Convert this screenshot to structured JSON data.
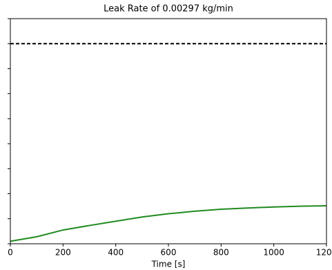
{
  "chart_data": {
    "type": "line",
    "title": "Leak Rate of 0.00297 kg/min",
    "xlabel": "Time [s]",
    "xlim": [
      0,
      1200
    ],
    "xticks": [
      0,
      200,
      400,
      600,
      800,
      1000,
      1200
    ],
    "ylim": [
      0,
      9
    ],
    "yticks": [
      0,
      1,
      2,
      3,
      4,
      5,
      6,
      7,
      8,
      9
    ],
    "series": [
      {
        "color": "#1f8a1f",
        "dashed": false,
        "x": [
          0,
          100,
          200,
          300,
          400,
          500,
          600,
          700,
          800,
          900,
          1000,
          1100,
          1200
        ],
        "values": [
          0.1,
          0.28,
          0.55,
          0.73,
          0.9,
          1.07,
          1.2,
          1.3,
          1.38,
          1.43,
          1.47,
          1.5,
          1.52
        ]
      },
      {
        "color": "#000000",
        "dashed": true,
        "x": [
          0,
          1200
        ],
        "values": [
          8,
          8
        ]
      }
    ]
  }
}
